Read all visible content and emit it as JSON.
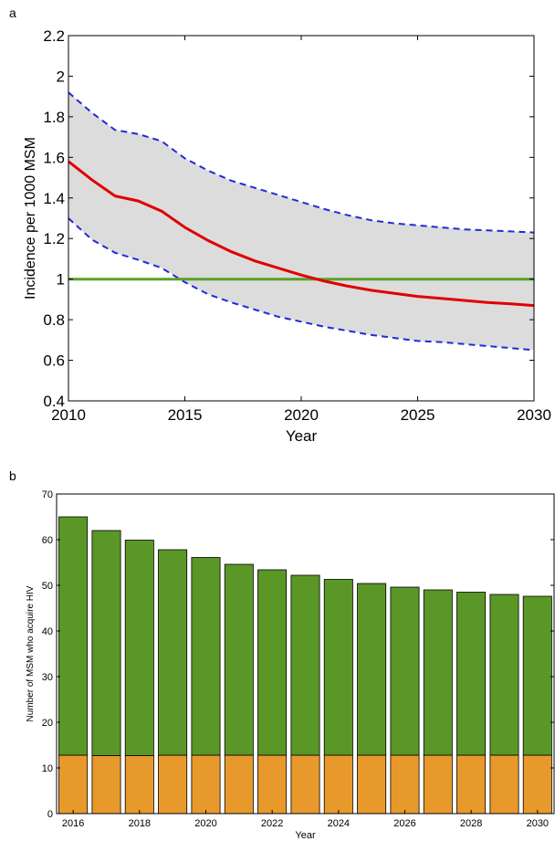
{
  "panels": {
    "a": "a",
    "b": "b"
  },
  "chart_data": [
    {
      "type": "line",
      "xlabel": "Year",
      "ylabel": "Incidence per 1000 MSM",
      "xlim": [
        2010,
        2030
      ],
      "ylim": [
        0.4,
        2.2
      ],
      "xticks": [
        2010,
        2015,
        2020,
        2025,
        2030
      ],
      "yticks": [
        0.4,
        0.6,
        0.8,
        1,
        1.2,
        1.4,
        1.6,
        1.8,
        2,
        2.2
      ],
      "ytick_labels": [
        "0.4",
        "0.6",
        "0.8",
        "1",
        "1.2",
        "1.4",
        "1.6",
        "1.8",
        "2",
        "2.2"
      ],
      "grid": false,
      "band_color": "#dcdcdc",
      "series": [
        {
          "role": "median",
          "style": "solid",
          "color": "#e00000",
          "x": [
            2010,
            2011,
            2012,
            2013,
            2014,
            2015,
            2016,
            2017,
            2018,
            2019,
            2020,
            2021,
            2022,
            2023,
            2024,
            2025,
            2026,
            2027,
            2028,
            2029,
            2030
          ],
          "y": [
            1.58,
            1.49,
            1.41,
            1.385,
            1.335,
            1.255,
            1.19,
            1.135,
            1.09,
            1.055,
            1.02,
            0.99,
            0.965,
            0.945,
            0.93,
            0.915,
            0.905,
            0.895,
            0.885,
            0.878,
            0.87
          ]
        },
        {
          "role": "upper",
          "style": "dashed",
          "color": "#1f2bd8",
          "x": [
            2010,
            2011,
            2012,
            2013,
            2014,
            2015,
            2016,
            2017,
            2018,
            2019,
            2020,
            2021,
            2022,
            2023,
            2024,
            2025,
            2026,
            2027,
            2028,
            2029,
            2030
          ],
          "y": [
            1.92,
            1.82,
            1.735,
            1.715,
            1.68,
            1.595,
            1.535,
            1.485,
            1.45,
            1.415,
            1.38,
            1.345,
            1.315,
            1.29,
            1.275,
            1.265,
            1.255,
            1.245,
            1.24,
            1.235,
            1.23
          ]
        },
        {
          "role": "lower",
          "style": "dashed",
          "color": "#1f2bd8",
          "x": [
            2010,
            2011,
            2012,
            2013,
            2014,
            2015,
            2016,
            2017,
            2018,
            2019,
            2020,
            2021,
            2022,
            2023,
            2024,
            2025,
            2026,
            2027,
            2028,
            2029,
            2030
          ],
          "y": [
            1.3,
            1.195,
            1.13,
            1.095,
            1.055,
            0.985,
            0.925,
            0.885,
            0.85,
            0.815,
            0.79,
            0.765,
            0.745,
            0.725,
            0.71,
            0.695,
            0.69,
            0.68,
            0.67,
            0.66,
            0.65
          ]
        },
        {
          "role": "target",
          "style": "solid",
          "color": "#5aa02c",
          "x": [
            2010,
            2030
          ],
          "y": [
            1,
            1
          ]
        }
      ]
    },
    {
      "type": "bar",
      "stacked": true,
      "xlabel": "Year",
      "ylabel": "Number of MSM who acquire HIV",
      "ylim": [
        0,
        70
      ],
      "yticks": [
        0,
        10,
        20,
        30,
        40,
        50,
        60,
        70
      ],
      "categories": [
        2016,
        2017,
        2018,
        2019,
        2020,
        2021,
        2022,
        2023,
        2024,
        2025,
        2026,
        2027,
        2028,
        2029,
        2030
      ],
      "xtick_labels": [
        2016,
        2018,
        2020,
        2022,
        2024,
        2026,
        2028,
        2030
      ],
      "grid": false,
      "series": [
        {
          "color": "#e8992b",
          "values": [
            12.8,
            12.7,
            12.7,
            12.8,
            12.8,
            12.8,
            12.8,
            12.8,
            12.8,
            12.8,
            12.8,
            12.8,
            12.8,
            12.8,
            12.8
          ]
        },
        {
          "color": "#5a9727",
          "values": [
            52.2,
            49.3,
            47.2,
            45.0,
            43.3,
            41.8,
            40.6,
            39.4,
            38.5,
            37.6,
            36.8,
            36.2,
            35.7,
            35.2,
            34.8
          ]
        }
      ]
    }
  ]
}
